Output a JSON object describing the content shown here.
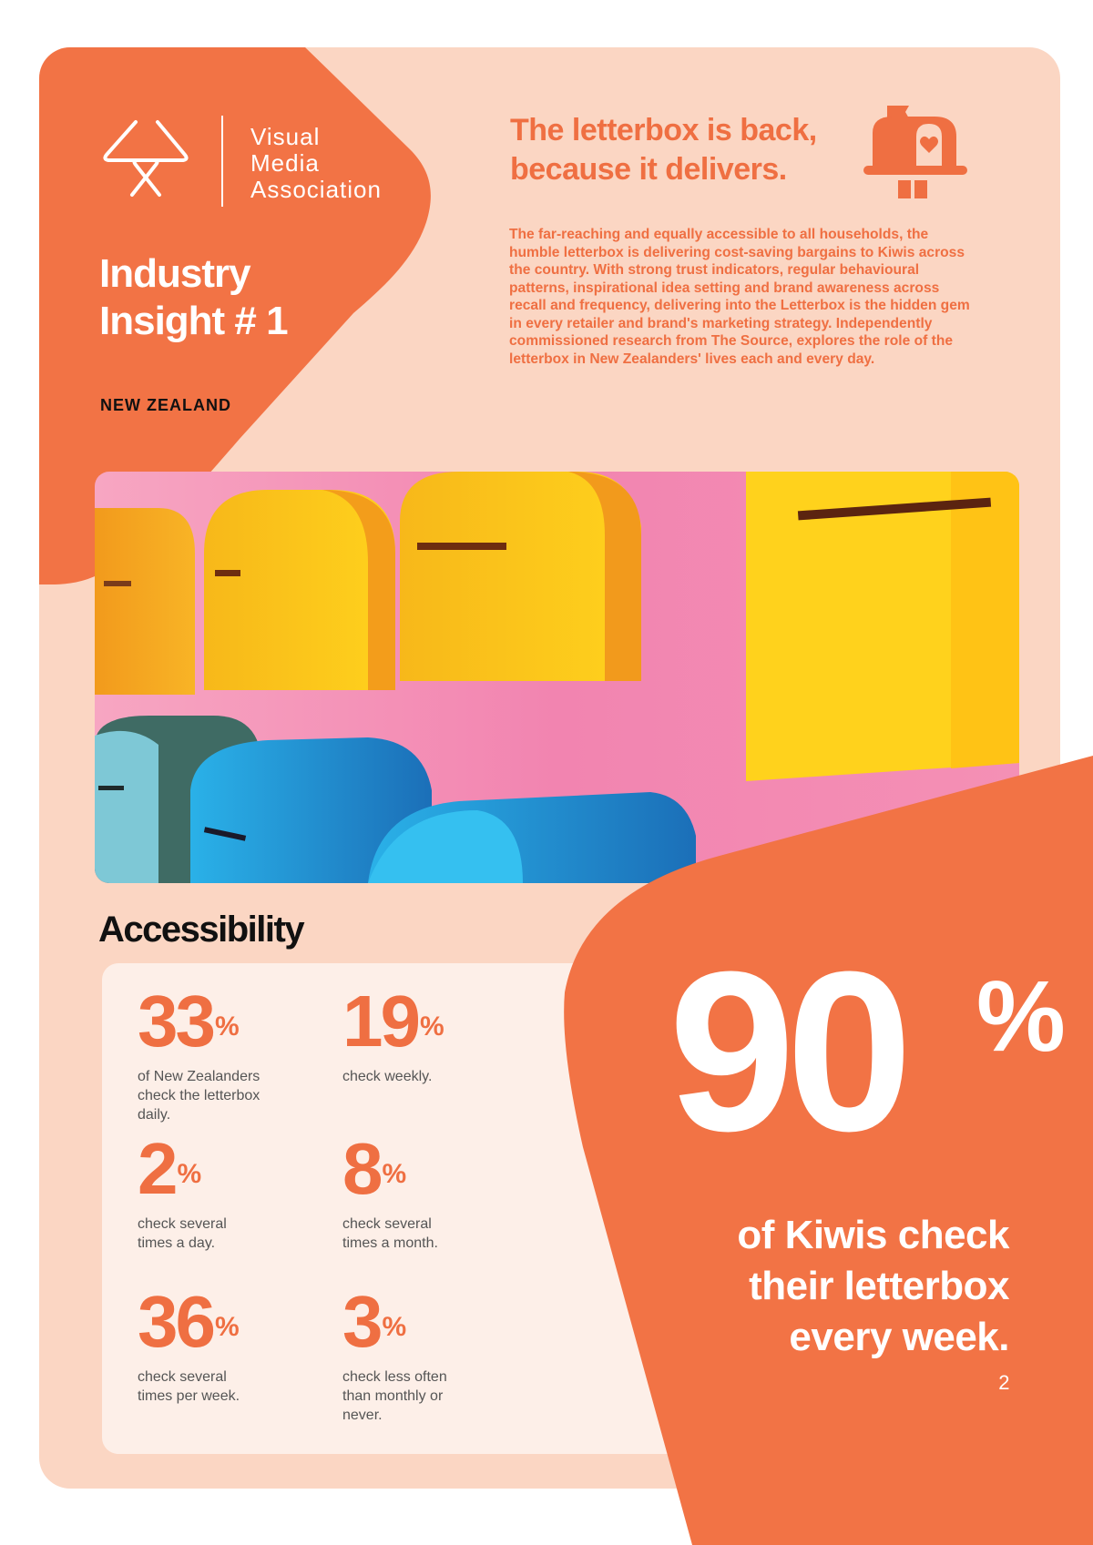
{
  "brand": {
    "name_lines": [
      "Visual",
      "Media",
      "Association"
    ],
    "logo_icon": "interlocking-s-logo-icon"
  },
  "insight": {
    "title_lines": [
      "Industry",
      "Insight # 1"
    ],
    "region": "NEW ZEALAND"
  },
  "headline": {
    "lines": [
      "The letterbox is back,",
      "because it delivers."
    ],
    "icon": "letterbox-heart-icon"
  },
  "intro": "The far-reaching and equally accessible to all households, the humble letterbox is delivering cost-saving bargains to Kiwis across the country. With strong trust indicators, regular behavioural patterns, inspirational idea setting and brand awareness across recall and frequency, delivering into the Letterbox is the hidden gem in every retailer and brand's marketing strategy. Independently commissioned research from The Source, explores the role of the letterbox in New Zealanders' lives each and every day.",
  "section": {
    "title": "Accessibility"
  },
  "stats": [
    {
      "value": "33",
      "unit": "%",
      "label": "of New Zealanders check the letterbox daily."
    },
    {
      "value": "19",
      "unit": "%",
      "label": "check weekly."
    },
    {
      "value": "2",
      "unit": "%",
      "label": "check several times a day."
    },
    {
      "value": "8",
      "unit": "%",
      "label": "check several times a month."
    },
    {
      "value": "36",
      "unit": "%",
      "label": "check several times per week."
    },
    {
      "value": "3",
      "unit": "%",
      "label": "check less often than monthly or never."
    }
  ],
  "highlight": {
    "value": "90",
    "unit": "%",
    "caption_lines": [
      "of Kiwis check",
      "their letterbox",
      "every week."
    ],
    "footnote": "2"
  },
  "colors": {
    "accent": "#ef6f42",
    "background": "#fbd6c3",
    "panel": "#fdefe8"
  }
}
